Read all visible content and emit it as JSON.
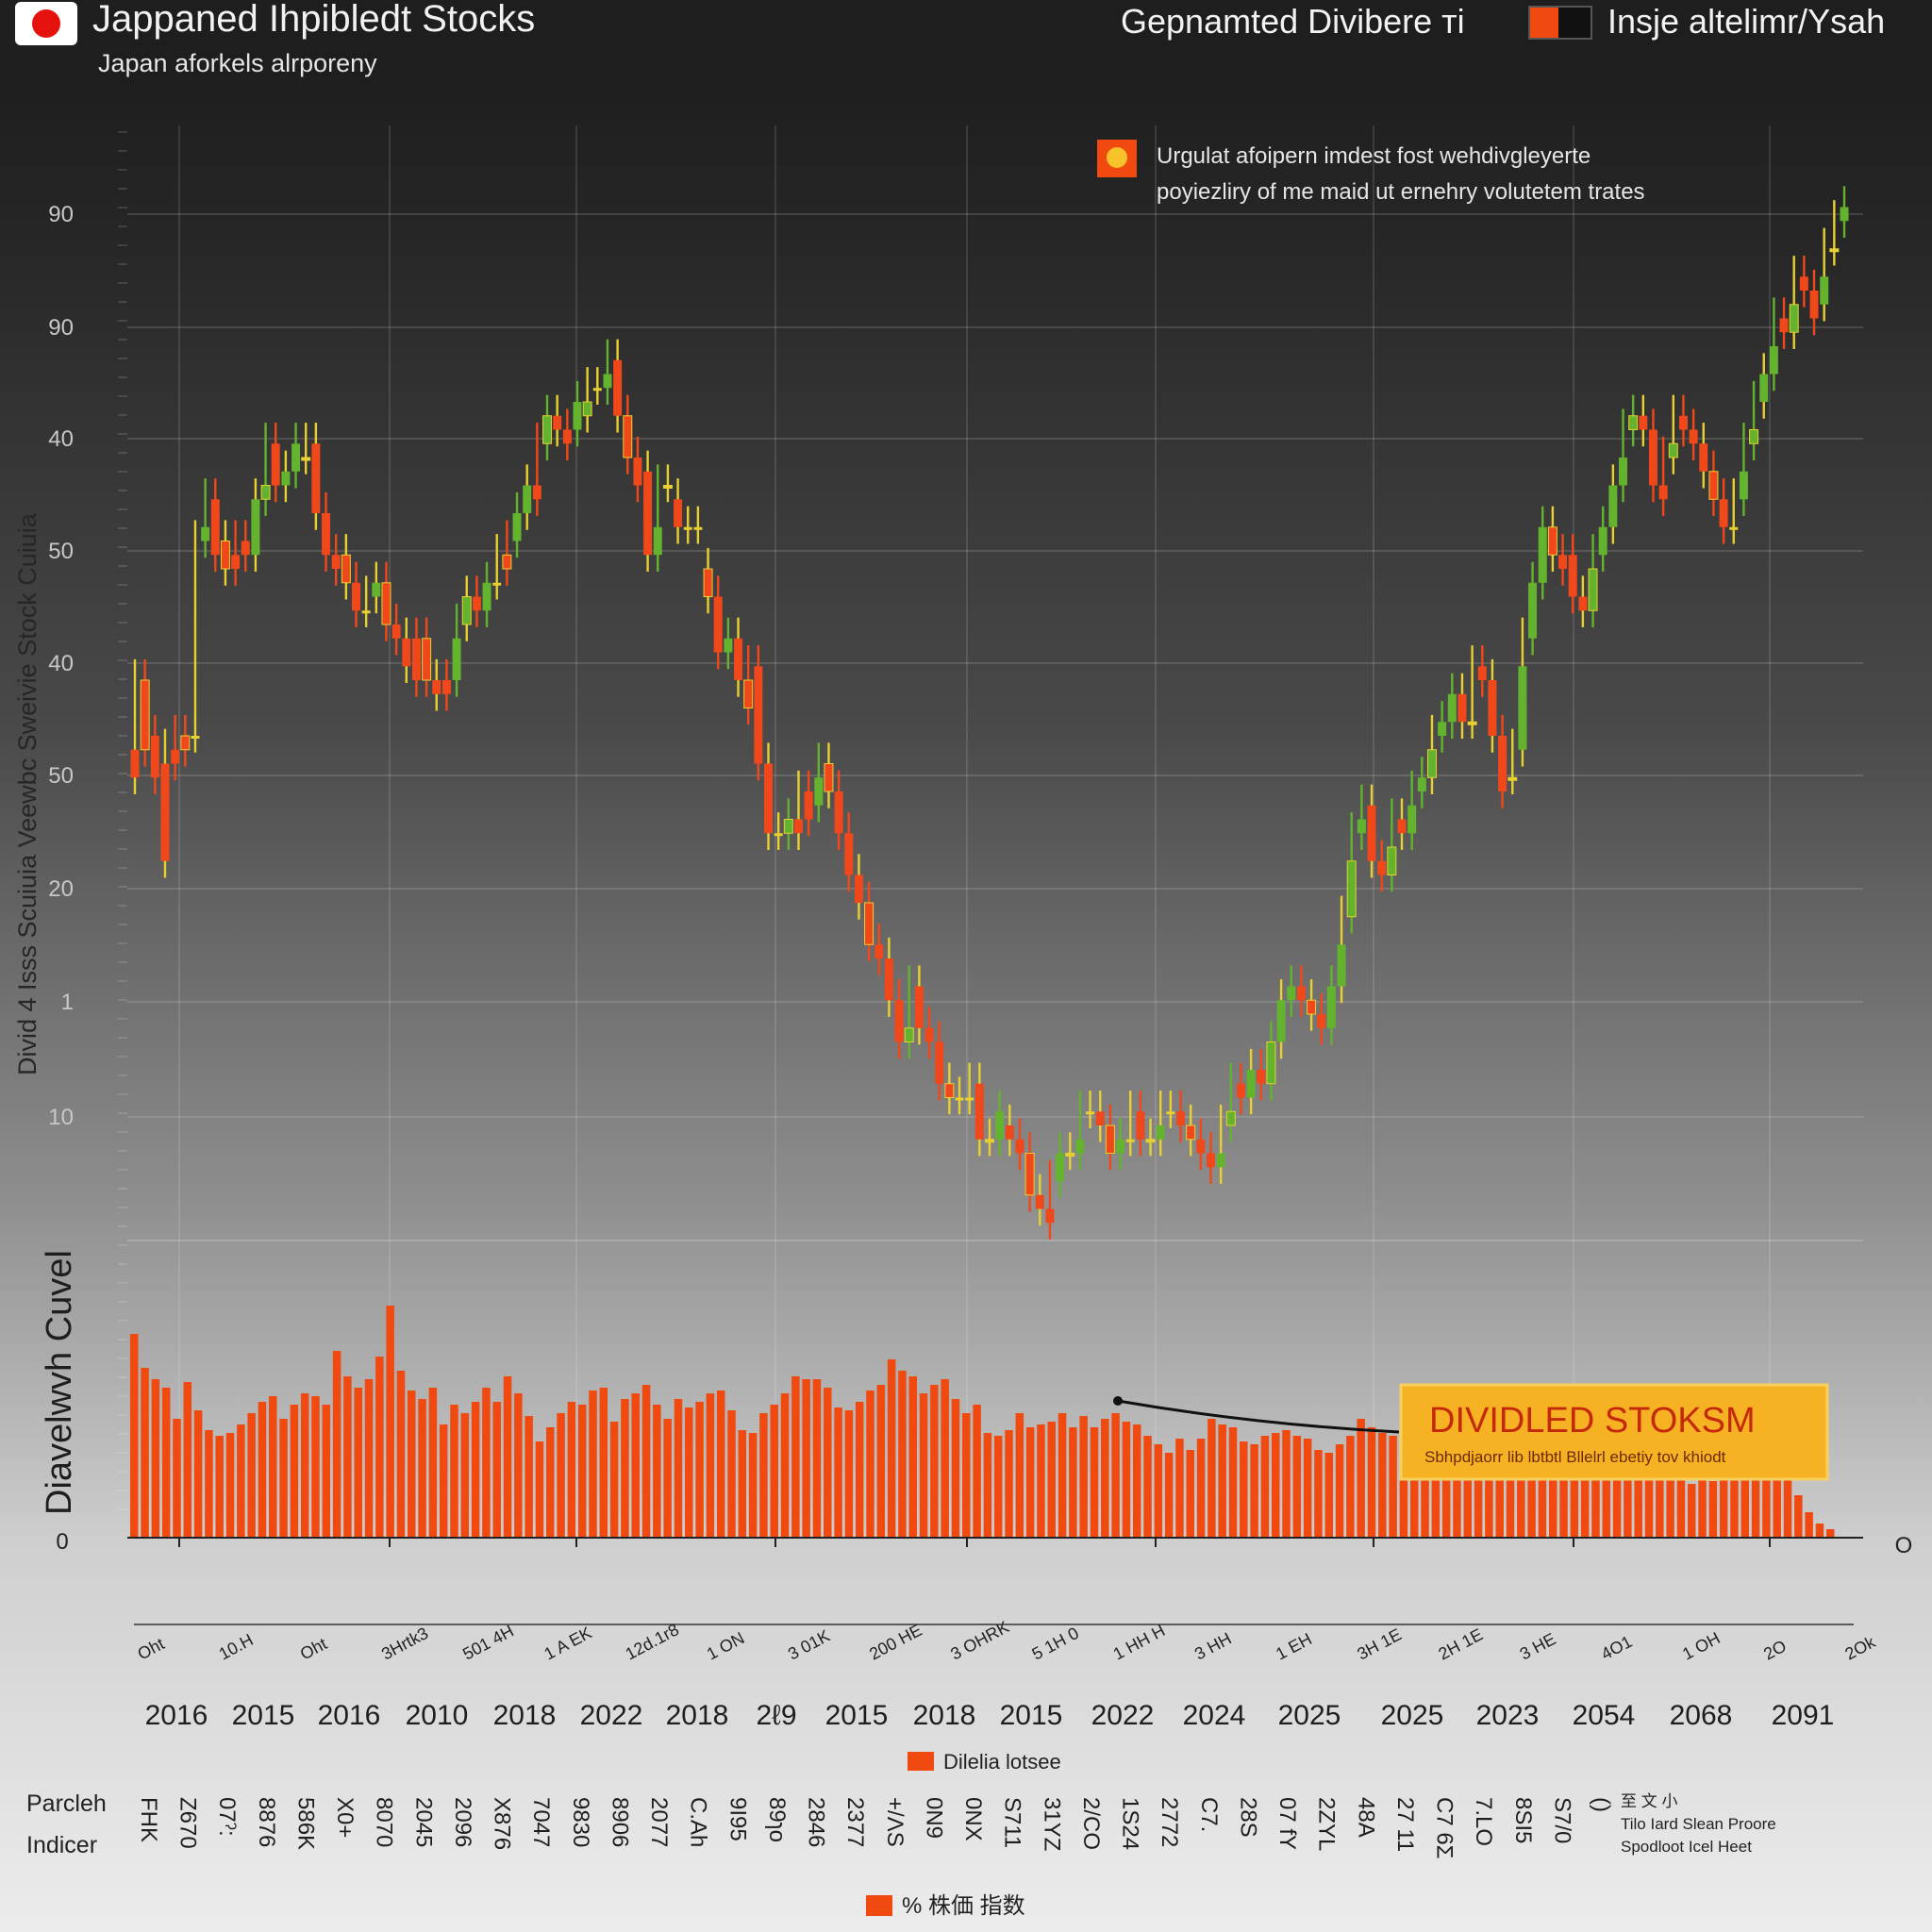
{
  "header": {
    "title": "Jappaned Ihpibledt Stocks",
    "subtitle": "Japan aforkels alrporeny",
    "right_text": "Gepnamted Divibere ті",
    "legend_label": "Insje altelimr/Ysah"
  },
  "side_label": "Divid 4 Isss Scuiuia Veewbc Sweivie Stock Cuiuia",
  "side_label_2": "Diavelwvh Cuvel",
  "annotation": {
    "line1": "Urgulat afoipern imdest fost wehdivgleyerte",
    "line2": "poyiezliry of me maid ut ernehry volutetem trates"
  },
  "callout": {
    "title": "DIVIDLED STOKSM",
    "subtitle": "Sbhpdjaorr lib lbtbtl Bllelrl ebetiy tov khiodt"
  },
  "legend_bottom": "Dilelia lotsee",
  "legend_bottom_2": "%  株価 指数",
  "row_labels": {
    "row1": "Parcleh",
    "row2": "Indicer"
  },
  "footnote": {
    "mark": "至 文 小",
    "line1": "Tilo  Iard  Slean  Proore",
    "line2": "Spodloot  Icel  Heet"
  },
  "colors": {
    "up": "#63b32e",
    "down": "#f0481a",
    "doji": "#e8d030",
    "volume": "#f04a10",
    "callout_bg": "#f6b222",
    "callout_text": "#c42a0a"
  },
  "chart_data": [
    {
      "type": "candlestick",
      "ylabel_ticks": [
        "90",
        "90",
        "40",
        "50",
        "40",
        "50",
        "20",
        "1",
        "10"
      ],
      "candles": [
        [
          39,
          37,
          45,
          44
        ],
        [
          44,
          39,
          48,
          40
        ],
        [
          40,
          37,
          43,
          38
        ],
        [
          38,
          31,
          39,
          39
        ],
        [
          39,
          38,
          41,
          40
        ],
        [
          40,
          39,
          46,
          40
        ],
        [
          40,
          40,
          57,
          54
        ],
        [
          54,
          55,
          57,
          57
        ],
        [
          57,
          53,
          58,
          54
        ],
        [
          54,
          52,
          57,
          53
        ],
        [
          53,
          52,
          55,
          54
        ],
        [
          54,
          53,
          56,
          53
        ],
        [
          53,
          57,
          58,
          53
        ],
        [
          57,
          58,
          61,
          61
        ],
        [
          61,
          58,
          63,
          58
        ],
        [
          58,
          59,
          61,
          59
        ],
        [
          59,
          61,
          62,
          60
        ],
        [
          60,
          60,
          62,
          61
        ],
        [
          61,
          56,
          63,
          56
        ],
        [
          56,
          53,
          57,
          53
        ],
        [
          53,
          52,
          55,
          53
        ],
        [
          53,
          51,
          54,
          51
        ],
        [
          51,
          49,
          53,
          49
        ],
        [
          49,
          49,
          52,
          50
        ],
        [
          50,
          51,
          52,
          51
        ],
        [
          51,
          48,
          52,
          48
        ],
        [
          48,
          47,
          50,
          47
        ],
        [
          47,
          45,
          49,
          47
        ],
        [
          47,
          44,
          48,
          47
        ],
        [
          47,
          44,
          48,
          44
        ],
        [
          44,
          43,
          46,
          44
        ],
        [
          44,
          43,
          46,
          44
        ],
        [
          44,
          47,
          48,
          48
        ],
        [
          48,
          50,
          51,
          50
        ],
        [
          50,
          49,
          51,
          49
        ],
        [
          49,
          51,
          53,
          51
        ],
        [
          51,
          51,
          55,
          53
        ],
        [
          53,
          52,
          55,
          54
        ],
        [
          54,
          56,
          57,
          56
        ],
        [
          56,
          58,
          60,
          58
        ],
        [
          58,
          57,
          61,
          61
        ],
        [
          61,
          63,
          64,
          63
        ],
        [
          63,
          62,
          66,
          62
        ],
        [
          62,
          61,
          64,
          62
        ],
        [
          62,
          64,
          65,
          63
        ],
        [
          63,
          64,
          65,
          65
        ],
        [
          65,
          65,
          66,
          65
        ],
        [
          65,
          66,
          68,
          67
        ],
        [
          67,
          63,
          67,
          63
        ],
        [
          63,
          60,
          64,
          60
        ],
        [
          60,
          58,
          61,
          59
        ],
        [
          59,
          53,
          61,
          53
        ],
        [
          53,
          55,
          58,
          58
        ],
        [
          58,
          58,
          59,
          57
        ],
        [
          57,
          55,
          58,
          55
        ],
        [
          55,
          55,
          59,
          55
        ],
        [
          55,
          55,
          57,
          52
        ],
        [
          52,
          50,
          52,
          50
        ],
        [
          50,
          46,
          51,
          46
        ],
        [
          46,
          47,
          49,
          47
        ],
        [
          47,
          44,
          47,
          44
        ],
        [
          44,
          42,
          45,
          45
        ],
        [
          45,
          38,
          45,
          38
        ],
        [
          38,
          33,
          38,
          33
        ],
        [
          33,
          33,
          33,
          33
        ],
        [
          33,
          34,
          36,
          34
        ],
        [
          34,
          33,
          36,
          36
        ],
        [
          36,
          34,
          37,
          35
        ],
        [
          35,
          37,
          38,
          38
        ],
        [
          38,
          36,
          38,
          36
        ],
        [
          36,
          33,
          37,
          33
        ],
        [
          33,
          30,
          34,
          30
        ],
        [
          30,
          28,
          31,
          28
        ],
        [
          28,
          25,
          29,
          25
        ],
        [
          25,
          24,
          27,
          24
        ],
        [
          24,
          21,
          25,
          21
        ],
        [
          21,
          18,
          21,
          18
        ],
        [
          18,
          19,
          22,
          22
        ],
        [
          22,
          19,
          23,
          19
        ],
        [
          19,
          18,
          22,
          18
        ],
        [
          18,
          15,
          19,
          15
        ],
        [
          15,
          14,
          16,
          14
        ],
        [
          14,
          14,
          16,
          14
        ],
        [
          14,
          14,
          16,
          15
        ],
        [
          15,
          11,
          16,
          11
        ],
        [
          11,
          11,
          12,
          11
        ],
        [
          11,
          13,
          14,
          12
        ],
        [
          12,
          11,
          14,
          11
        ],
        [
          11,
          10,
          13,
          10
        ],
        [
          10,
          7,
          11,
          7
        ],
        [
          7,
          6,
          8,
          6
        ],
        [
          6,
          5,
          8,
          8
        ],
        [
          8,
          10,
          10,
          10
        ],
        [
          10,
          10,
          11,
          10
        ],
        [
          10,
          11,
          13,
          13
        ],
        [
          13,
          13,
          14,
          13
        ],
        [
          13,
          12,
          14,
          12
        ],
        [
          12,
          10,
          13,
          10
        ],
        [
          10,
          11,
          12,
          11
        ],
        [
          11,
          11,
          13,
          13
        ],
        [
          13,
          11,
          14,
          11
        ],
        [
          11,
          11,
          12,
          11
        ],
        [
          11,
          12,
          13,
          13
        ],
        [
          13,
          13,
          14,
          13
        ],
        [
          13,
          12,
          13,
          12
        ],
        [
          12,
          11,
          13,
          11
        ],
        [
          11,
          10,
          12,
          10
        ],
        [
          10,
          9,
          11,
          9
        ],
        [
          9,
          10,
          12,
          12
        ],
        [
          12,
          13,
          15,
          15
        ],
        [
          15,
          14,
          16,
          14
        ],
        [
          14,
          16,
          18,
          16
        ],
        [
          16,
          15,
          18,
          15
        ],
        [
          15,
          18,
          20,
          18
        ],
        [
          18,
          21,
          23,
          21
        ],
        [
          21,
          22,
          24,
          22
        ],
        [
          22,
          21,
          23,
          21
        ],
        [
          21,
          20,
          22,
          20
        ],
        [
          20,
          19,
          20,
          19
        ],
        [
          19,
          22,
          25,
          22
        ],
        [
          22,
          25,
          28,
          27
        ],
        [
          27,
          31,
          34,
          33
        ],
        [
          33,
          34,
          37,
          35
        ],
        [
          35,
          31,
          37,
          31
        ],
        [
          31,
          30,
          35,
          30
        ],
        [
          30,
          32,
          35,
          34
        ],
        [
          34,
          33,
          36,
          33
        ],
        [
          33,
          35,
          37,
          36
        ],
        [
          36,
          37,
          40,
          37
        ],
        [
          37,
          39,
          40,
          40
        ],
        [
          40,
          41,
          43,
          41
        ],
        [
          41,
          43,
          45,
          43
        ],
        [
          43,
          41,
          45,
          41
        ],
        [
          41,
          41,
          46,
          45
        ],
        [
          45,
          44,
          46,
          44
        ],
        [
          44,
          40,
          45,
          40
        ],
        [
          40,
          36,
          41,
          37
        ],
        [
          37,
          37,
          40,
          39
        ],
        [
          39,
          45,
          47,
          47
        ],
        [
          47,
          51,
          53,
          51
        ],
        [
          51,
          55,
          57,
          55
        ],
        [
          55,
          53,
          56,
          53
        ],
        [
          53,
          52,
          55,
          53
        ],
        [
          53,
          50,
          54,
          50
        ],
        [
          50,
          49,
          51,
          49
        ],
        [
          49,
          52,
          54,
          53
        ],
        [
          53,
          55,
          57,
          55
        ],
        [
          55,
          58,
          60,
          58
        ],
        [
          58,
          60,
          62,
          62
        ],
        [
          62,
          63,
          65,
          63
        ],
        [
          63,
          62,
          64,
          62
        ],
        [
          62,
          58,
          64,
          58
        ],
        [
          58,
          57,
          61,
          60
        ],
        [
          60,
          61,
          63,
          63
        ],
        [
          63,
          62,
          65,
          62
        ],
        [
          62,
          61,
          64,
          61
        ],
        [
          61,
          59,
          62,
          59
        ],
        [
          59,
          57,
          60,
          57
        ],
        [
          57,
          55,
          57,
          55
        ],
        [
          55,
          55,
          58,
          57
        ],
        [
          57,
          59,
          61,
          61
        ],
        [
          61,
          62,
          65,
          64
        ],
        [
          64,
          66,
          69,
          66
        ],
        [
          66,
          68,
          70,
          70
        ],
        [
          70,
          69,
          71,
          69
        ],
        [
          69,
          71,
          73,
          73
        ],
        [
          73,
          72,
          75,
          72
        ],
        [
          72,
          70,
          74,
          71
        ],
        [
          71,
          73,
          75,
          75
        ],
        [
          75,
          75,
          77,
          77
        ],
        [
          77,
          78,
          79,
          78
        ]
      ]
    },
    {
      "type": "bar",
      "ylabel_ticks": [
        "0"
      ],
      "volume_values": [
        72,
        60,
        56,
        53,
        42,
        55,
        45,
        38,
        36,
        37,
        40,
        44,
        48,
        50,
        42,
        47,
        51,
        50,
        47,
        66,
        57,
        53,
        56,
        64,
        82,
        59,
        52,
        49,
        53,
        40,
        47,
        44,
        48,
        53,
        48,
        57,
        51,
        43,
        34,
        39,
        44,
        48,
        47,
        52,
        53,
        41,
        49,
        51,
        54,
        47,
        42,
        49,
        46,
        48,
        51,
        52,
        45,
        38,
        37,
        44,
        47,
        51,
        57,
        56,
        56,
        53,
        46,
        45,
        48,
        52,
        54,
        63,
        59,
        57,
        51,
        54,
        56,
        49,
        44,
        47,
        37,
        36,
        38,
        44,
        39,
        40,
        41,
        44,
        39,
        43,
        39,
        42,
        44,
        41,
        40,
        36,
        33,
        30,
        35,
        31,
        35,
        42,
        40,
        39,
        34,
        33,
        36,
        37,
        38,
        36,
        35,
        31,
        30,
        33,
        36,
        42,
        39,
        37,
        36,
        42,
        39,
        37,
        31,
        29,
        26,
        25,
        33,
        38,
        35,
        34,
        32,
        27,
        30,
        32,
        37,
        29,
        27,
        30,
        36,
        28,
        34,
        31,
        27,
        25,
        23,
        22,
        19,
        25,
        20,
        24,
        22,
        23,
        27,
        26,
        24,
        21,
        15,
        9,
        5,
        3
      ]
    }
  ],
  "x_axis": {
    "top_labels": [
      "Oht",
      "10.H",
      "Oht",
      "3Hrtk3",
      "501 4H",
      "1 A EK",
      "12d.1r8",
      "1 ON",
      "3 01K",
      "200 HE",
      "3 OHRK",
      "5 1H 0",
      "1 HH H",
      "3 HH",
      "1 EH",
      "3H 1E",
      "2H 1E",
      "3 HE",
      "4O1",
      "1 OH",
      "2O",
      "2Ok"
    ],
    "year_labels": [
      "2016",
      "2015",
      "2016",
      "2010",
      "2018",
      "2022",
      "2018",
      "2ℓ9",
      "2015",
      "2018",
      "2015",
      "2022",
      "2024",
      "2025",
      "2025",
      "2023",
      "2054",
      "2068",
      "2091"
    ],
    "row_values": [
      "FHK",
      "Z670",
      "07ˀ:",
      "8876",
      "586K",
      "X0+",
      "8070",
      "2045",
      "2096",
      "X876",
      "7047",
      "9830",
      "8906",
      "2077",
      "C.Ah",
      "9I95",
      "89ɿo",
      "2846",
      "2377",
      "+/ΛS",
      "0N9",
      "0NX",
      "S711",
      "31YZ",
      "2/CO",
      "1S24",
      "2772",
      "C7.",
      "28S",
      "07 fY",
      "2ZYL",
      "48A",
      "27 11",
      "C7 6Σ",
      "7.LO",
      "8SI5",
      "S7/0",
      "()"
    ],
    "right_axis_label": "O"
  }
}
